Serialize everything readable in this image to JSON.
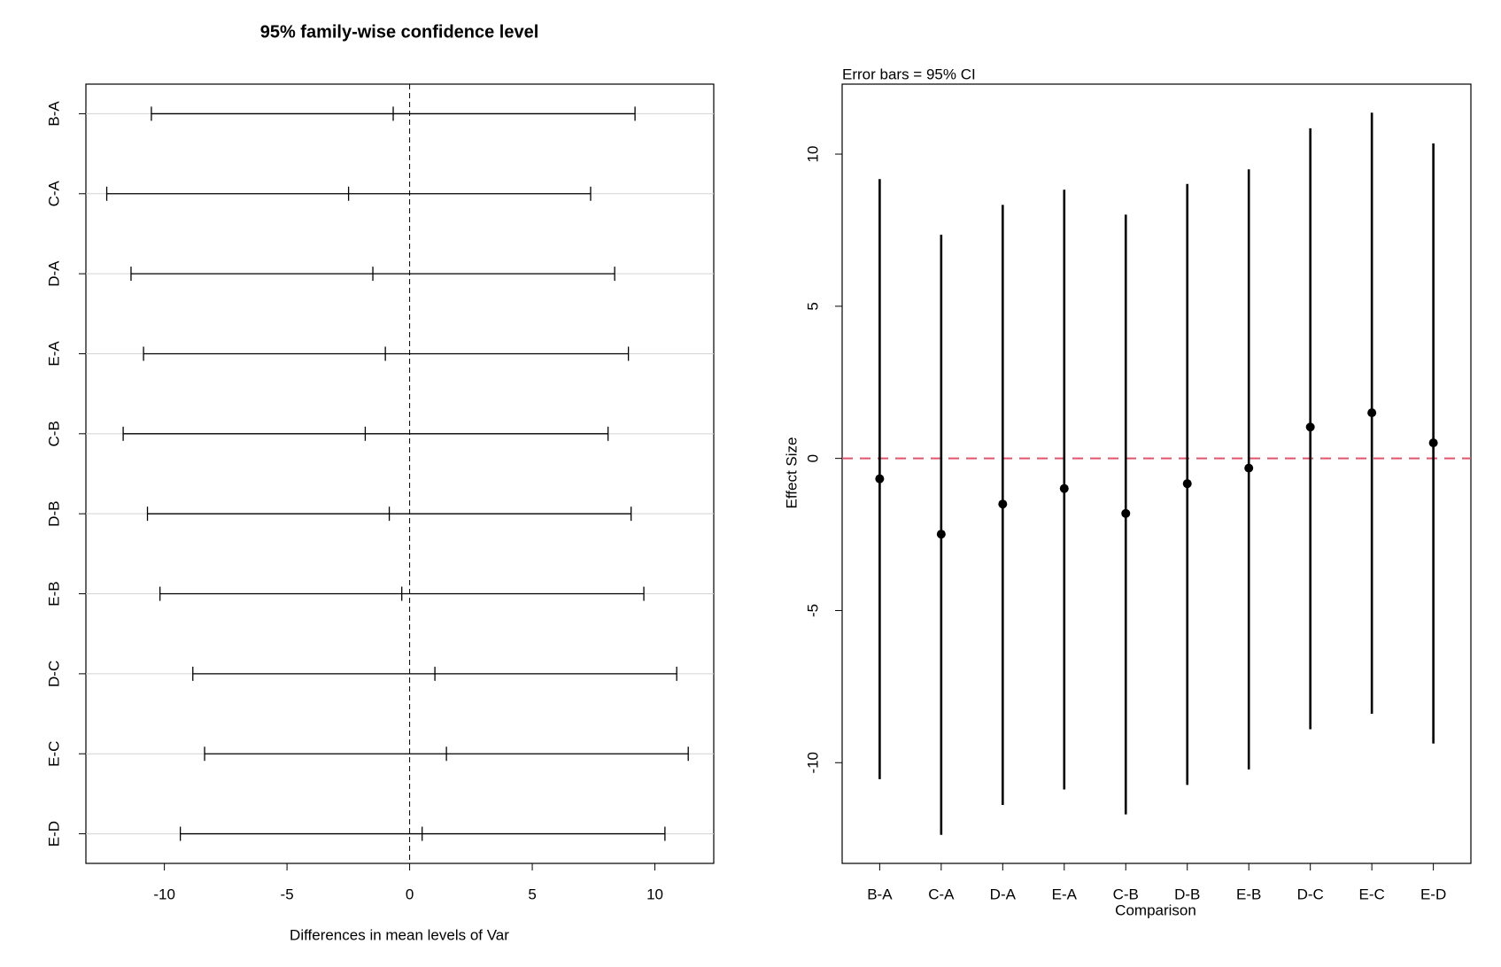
{
  "chart_data": [
    {
      "type": "errorbar",
      "orientation": "horizontal",
      "title": "95% family-wise confidence level",
      "x_label": "Differences in mean levels of Var",
      "categories": [
        "B-A",
        "C-A",
        "D-A",
        "E-A",
        "C-B",
        "D-B",
        "E-B",
        "D-C",
        "E-C",
        "E-D"
      ],
      "values": [
        -0.67,
        -2.49,
        -1.5,
        -0.99,
        -1.81,
        -0.83,
        -0.32,
        1.03,
        1.5,
        0.51
      ],
      "lower": [
        -10.53,
        -12.35,
        -11.36,
        -10.85,
        -11.68,
        -10.69,
        -10.18,
        -8.84,
        -8.36,
        -9.35
      ],
      "upper": [
        9.19,
        7.38,
        8.36,
        8.92,
        8.09,
        9.03,
        9.55,
        10.89,
        11.36,
        10.41
      ],
      "color": "#000000",
      "xlim": [
        -13.2,
        12.4
      ],
      "xticks": [
        -10,
        -5,
        0,
        5,
        10
      ],
      "refline": 0,
      "refline_color": "#000000",
      "grid": true
    },
    {
      "type": "errorbar",
      "orientation": "vertical",
      "subtitle": "Error bars = 95% CI",
      "x_label": "Comparison",
      "y_label": "Effect Size",
      "categories": [
        "B-A",
        "C-A",
        "D-A",
        "E-A",
        "C-B",
        "D-B",
        "E-B",
        "D-C",
        "E-C",
        "E-D"
      ],
      "values": [
        -0.67,
        -2.49,
        -1.5,
        -0.99,
        -1.81,
        -0.83,
        -0.32,
        1.03,
        1.5,
        0.51
      ],
      "lower": [
        -10.54,
        -12.37,
        -11.39,
        -10.88,
        -11.7,
        -10.73,
        -10.22,
        -8.9,
        -8.39,
        -9.37
      ],
      "upper": [
        9.18,
        7.35,
        8.33,
        8.83,
        8.01,
        9.02,
        9.5,
        10.85,
        11.36,
        10.35
      ],
      "color": "#000000",
      "ylim": [
        -13.31,
        12.3
      ],
      "yticks": [
        -10,
        -5,
        0,
        5,
        10
      ],
      "refline": 0,
      "refline_color": "#df536b",
      "grid": false
    }
  ]
}
